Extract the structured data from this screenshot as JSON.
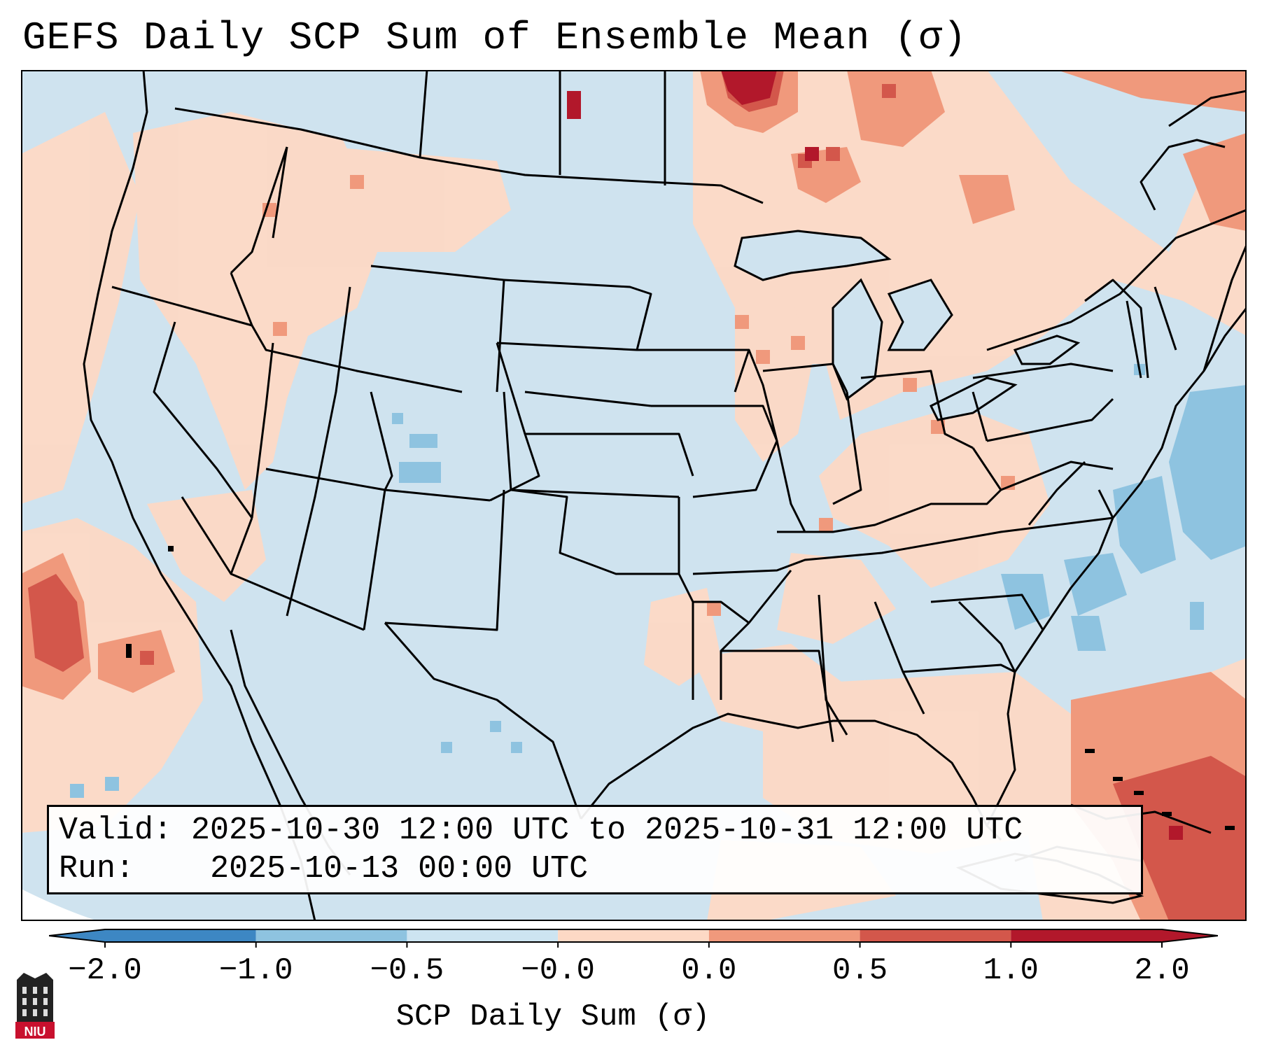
{
  "title": "GEFS Daily SCP Sum of Ensemble Mean (σ)",
  "info": {
    "valid_label": "Valid:",
    "valid_value": "2025-10-30 12:00 UTC to 2025-10-31 12:00 UTC",
    "run_label": "Run:",
    "run_value": "2025-10-13 00:00 UTC"
  },
  "colorbar": {
    "label": "SCP Daily Sum (σ)",
    "ticks": [
      "−2.0",
      "−1.0",
      "−0.5",
      "−0.0",
      "0.0",
      "0.5",
      "1.0",
      "2.0"
    ],
    "colors": [
      "#3d87c3",
      "#8ec3e0",
      "#cde4f1",
      "#f7f7f7",
      "#fdd9c5",
      "#f0997c",
      "#d3574b",
      "#b2182b"
    ]
  },
  "logo": {
    "text": "NIU"
  }
}
